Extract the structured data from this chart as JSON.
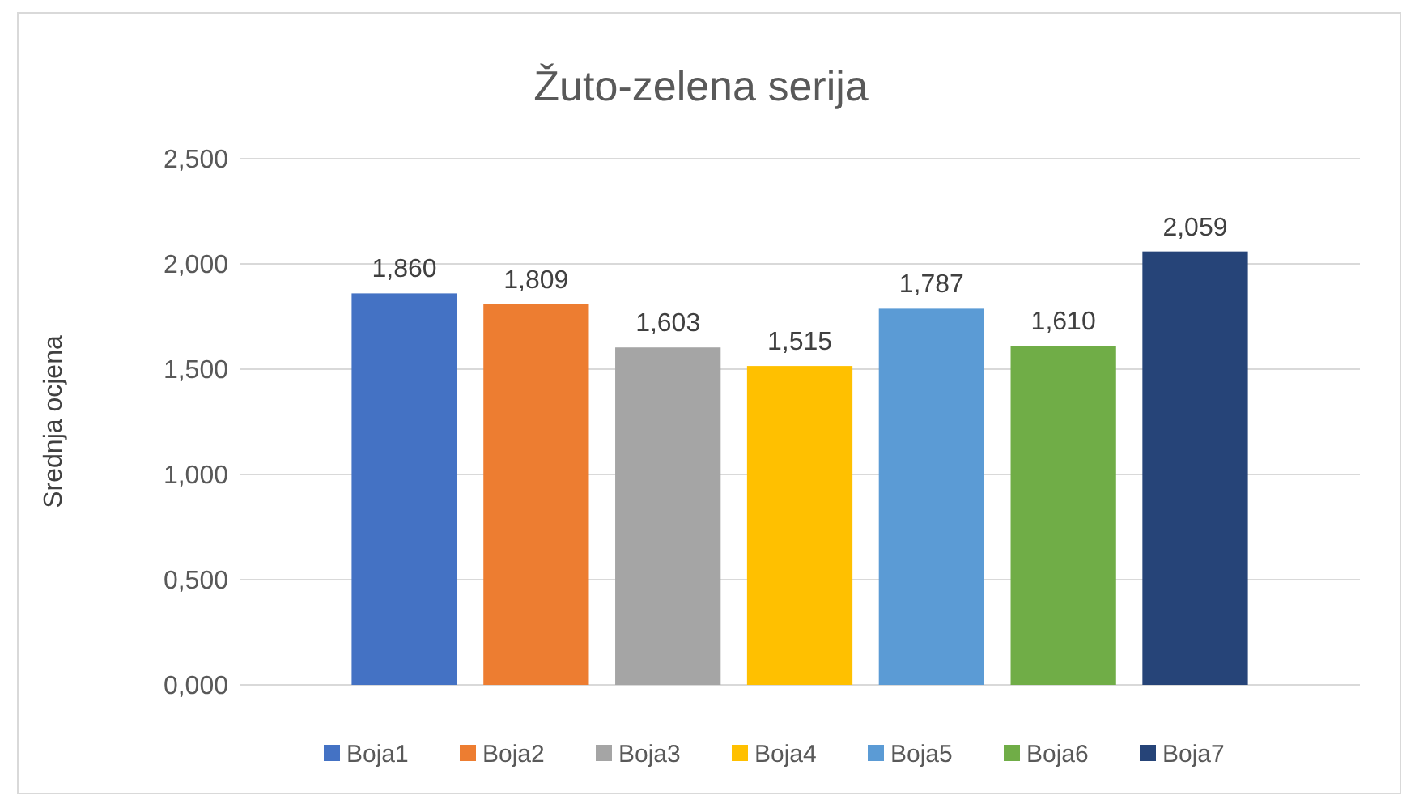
{
  "chart_data": {
    "type": "bar",
    "title": "Žuto-zelena serija",
    "ylabel": "Srednja ocjena",
    "categories": [
      null
    ],
    "series": [
      {
        "name": "Boja1",
        "color": "#4472c4",
        "values": [
          1.86
        ],
        "value_labels": [
          "1,860"
        ]
      },
      {
        "name": "Boja2",
        "color": "#ed7d31",
        "values": [
          1.809
        ],
        "value_labels": [
          "1,809"
        ]
      },
      {
        "name": "Boja3",
        "color": "#a5a5a5",
        "values": [
          1.603
        ],
        "value_labels": [
          "1,603"
        ]
      },
      {
        "name": "Boja4",
        "color": "#ffc000",
        "values": [
          1.515
        ],
        "value_labels": [
          "1,515"
        ]
      },
      {
        "name": "Boja5",
        "color": "#5b9bd5",
        "values": [
          1.787
        ],
        "value_labels": [
          "1,787"
        ]
      },
      {
        "name": "Boja6",
        "color": "#70ad47",
        "values": [
          1.61
        ],
        "value_labels": [
          "1,610"
        ]
      },
      {
        "name": "Boja7",
        "color": "#264478",
        "values": [
          2.059
        ],
        "value_labels": [
          "2,059"
        ]
      }
    ],
    "ylim": [
      0,
      2.5
    ],
    "yticks": [
      {
        "value": 0,
        "label": "0,000"
      },
      {
        "value": 0.5,
        "label": "0,500"
      },
      {
        "value": 1,
        "label": "1,000"
      },
      {
        "value": 1.5,
        "label": "1,500"
      },
      {
        "value": 2,
        "label": "2,000"
      },
      {
        "value": 2.5,
        "label": "2,500"
      }
    ],
    "grid": "y",
    "legend": "bottom"
  }
}
